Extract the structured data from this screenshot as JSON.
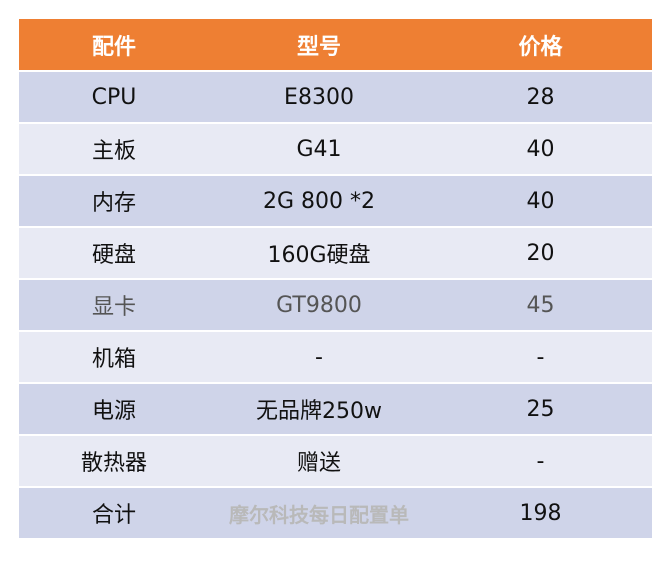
{
  "header": {
    "col1": "配件",
    "col2": "型号",
    "col3": "价格"
  },
  "rows": [
    {
      "part": "CPU",
      "model": "E8300",
      "price": "28"
    },
    {
      "part": "主板",
      "model": "G41",
      "price": "40"
    },
    {
      "part": "内存",
      "model": "2G 800 *2",
      "price": "40"
    },
    {
      "part": "硬盘",
      "model": "160G硬盘",
      "price": "20"
    },
    {
      "part": "显卡",
      "model": "GT9800",
      "price": "45"
    },
    {
      "part": "机箱",
      "model": "-",
      "price": "-"
    },
    {
      "part": "电源",
      "model": "无品牌250w",
      "price": "25"
    },
    {
      "part": "散热器",
      "model": "赠送",
      "price": "-"
    }
  ],
  "total": {
    "label": "合计",
    "watermark": "摩尔科技每日配置单",
    "price": "198"
  },
  "colors": {
    "header_bg": "#ee7f33",
    "row_light": "#e8eaf4",
    "row_dark": "#cfd4e9",
    "watermark": "#b9b9b9"
  }
}
